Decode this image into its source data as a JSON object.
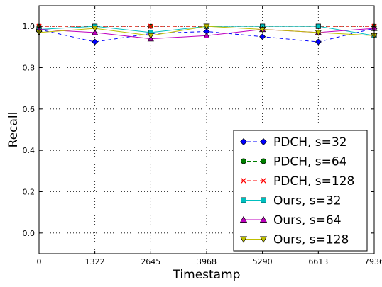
{
  "chart_data": {
    "type": "line",
    "title": "",
    "xlabel": "Timestamp",
    "ylabel": "Recall",
    "x": [
      0,
      1322,
      2645,
      3968,
      5290,
      6613,
      7936
    ],
    "x_tick_labels": [
      "0",
      "1322",
      "2645",
      "3968",
      "5290",
      "6613",
      "7936"
    ],
    "xlim": [
      0,
      7936
    ],
    "ylim": [
      -0.1,
      1.1
    ],
    "y_ticks": [
      0.0,
      0.2,
      0.4,
      0.6,
      0.8,
      1.0
    ],
    "y_tick_labels": [
      "0.0",
      "0.2",
      "0.4",
      "0.6",
      "0.8",
      "1.0"
    ],
    "grid": true,
    "legend_position": "lower-right",
    "series": [
      {
        "name": "PDCH, s=32",
        "color": "#0000ff",
        "marker": "diamond",
        "line": "dashed",
        "values": [
          0.985,
          0.925,
          0.965,
          0.975,
          0.95,
          0.925,
          0.99
        ]
      },
      {
        "name": "PDCH, s=64",
        "color": "#007f00",
        "marker": "circle",
        "line": "dashed",
        "values": [
          1.0,
          1.0,
          1.0,
          1.0,
          1.0,
          1.0,
          1.0
        ]
      },
      {
        "name": "PDCH, s=128",
        "color": "#ff0000",
        "marker": "x",
        "line": "dashed",
        "values": [
          1.0,
          1.0,
          1.0,
          1.0,
          1.0,
          1.0,
          1.0
        ]
      },
      {
        "name": "Ours, s=32",
        "color": "#00bfbf",
        "marker": "square",
        "line": "solid",
        "values": [
          0.985,
          1.0,
          0.97,
          1.0,
          1.0,
          1.0,
          0.955
        ]
      },
      {
        "name": "Ours, s=64",
        "color": "#bf00bf",
        "marker": "triangle-up",
        "line": "solid",
        "values": [
          0.985,
          0.97,
          0.94,
          0.955,
          0.985,
          0.97,
          0.99
        ]
      },
      {
        "name": "Ours, s=128",
        "color": "#bfbf00",
        "marker": "triangle-down",
        "line": "solid",
        "values": [
          0.97,
          0.99,
          0.955,
          1.0,
          0.985,
          0.97,
          0.955
        ]
      }
    ]
  }
}
